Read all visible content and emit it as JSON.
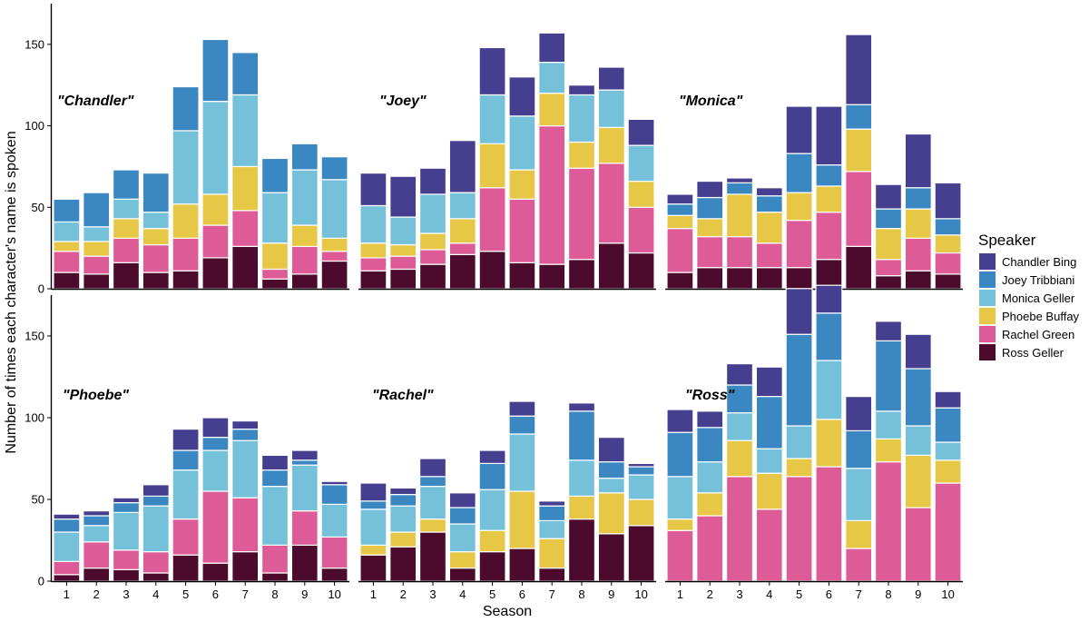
{
  "chart_data": {
    "type": "bar",
    "stacked": true,
    "xlabel": "Season",
    "ylabel": "Number of times each character's name is spoken",
    "ylim": [
      0,
      175
    ],
    "yticks": [
      0,
      50,
      100,
      150
    ],
    "categories": [
      "1",
      "2",
      "3",
      "4",
      "5",
      "6",
      "7",
      "8",
      "9",
      "10"
    ],
    "legend": {
      "title": "Speaker",
      "position": "right",
      "items": [
        {
          "name": "Chandler Bing",
          "color": "#463f8f"
        },
        {
          "name": "Joey Tribbiani",
          "color": "#3a87c2"
        },
        {
          "name": "Monica Geller",
          "color": "#76c1da"
        },
        {
          "name": "Phoebe Buffay",
          "color": "#e6c746"
        },
        {
          "name": "Rachel Green",
          "color": "#dd5c98"
        },
        {
          "name": "Ross Geller",
          "color": "#4c0b2d"
        }
      ]
    },
    "stack_order": [
      "Ross Geller",
      "Rachel Green",
      "Phoebe Buffay",
      "Monica Geller",
      "Joey Tribbiani",
      "Chandler Bing"
    ],
    "facets": [
      {
        "label": "\"Chandler\"",
        "series": [
          {
            "name": "Ross Geller",
            "values": [
              10,
              9,
              16,
              10,
              11,
              19,
              26,
              6,
              9,
              17
            ]
          },
          {
            "name": "Rachel Green",
            "values": [
              13,
              11,
              15,
              17,
              20,
              20,
              22,
              6,
              17,
              6
            ]
          },
          {
            "name": "Phoebe Buffay",
            "values": [
              6,
              9,
              12,
              10,
              21,
              19,
              27,
              16,
              13,
              8
            ]
          },
          {
            "name": "Monica Geller",
            "values": [
              12,
              9,
              12,
              10,
              45,
              57,
              44,
              31,
              34,
              36
            ]
          },
          {
            "name": "Joey Tribbiani",
            "values": [
              14,
              21,
              18,
              24,
              27,
              38,
              26,
              21,
              16,
              14
            ]
          },
          {
            "name": "Chandler Bing",
            "values": [
              0,
              0,
              0,
              0,
              0,
              0,
              0,
              0,
              0,
              0
            ]
          }
        ]
      },
      {
        "label": "\"Joey\"",
        "series": [
          {
            "name": "Ross Geller",
            "values": [
              11,
              12,
              15,
              21,
              23,
              16,
              15,
              18,
              28,
              22
            ]
          },
          {
            "name": "Rachel Green",
            "values": [
              8,
              8,
              9,
              7,
              39,
              39,
              85,
              56,
              49,
              28
            ]
          },
          {
            "name": "Phoebe Buffay",
            "values": [
              9,
              7,
              10,
              15,
              27,
              18,
              20,
              16,
              22,
              16
            ]
          },
          {
            "name": "Monica Geller",
            "values": [
              23,
              17,
              24,
              16,
              30,
              33,
              19,
              29,
              23,
              22
            ]
          },
          {
            "name": "Joey Tribbiani",
            "values": [
              0,
              0,
              0,
              0,
              0,
              0,
              0,
              0,
              0,
              0
            ]
          },
          {
            "name": "Chandler Bing",
            "values": [
              20,
              25,
              16,
              32,
              29,
              24,
              18,
              6,
              14,
              16
            ]
          }
        ]
      },
      {
        "label": "\"Monica\"",
        "series": [
          {
            "name": "Ross Geller",
            "values": [
              10,
              13,
              13,
              13,
              13,
              18,
              26,
              8,
              11,
              9
            ]
          },
          {
            "name": "Rachel Green",
            "values": [
              27,
              19,
              19,
              15,
              29,
              29,
              46,
              10,
              20,
              13
            ]
          },
          {
            "name": "Phoebe Buffay",
            "values": [
              8,
              11,
              26,
              19,
              17,
              16,
              26,
              19,
              18,
              11
            ]
          },
          {
            "name": "Monica Geller",
            "values": [
              0,
              0,
              0,
              0,
              0,
              0,
              0,
              0,
              0,
              0
            ]
          },
          {
            "name": "Joey Tribbiani",
            "values": [
              7,
              13,
              7,
              10,
              24,
              13,
              15,
              12,
              13,
              10
            ]
          },
          {
            "name": "Chandler Bing",
            "values": [
              6,
              10,
              3,
              5,
              29,
              36,
              43,
              15,
              33,
              22
            ]
          }
        ]
      },
      {
        "label": "\"Phoebe\"",
        "series": [
          {
            "name": "Ross Geller",
            "values": [
              4,
              8,
              7,
              5,
              16,
              11,
              18,
              5,
              22,
              8
            ]
          },
          {
            "name": "Rachel Green",
            "values": [
              8,
              16,
              12,
              13,
              22,
              44,
              33,
              17,
              21,
              19
            ]
          },
          {
            "name": "Phoebe Buffay",
            "values": [
              0,
              0,
              0,
              0,
              0,
              0,
              0,
              0,
              0,
              0
            ]
          },
          {
            "name": "Monica Geller",
            "values": [
              18,
              10,
              23,
              28,
              30,
              25,
              35,
              36,
              28,
              20
            ]
          },
          {
            "name": "Joey Tribbiani",
            "values": [
              8,
              6,
              6,
              6,
              12,
              8,
              7,
              10,
              3,
              12
            ]
          },
          {
            "name": "Chandler Bing",
            "values": [
              3,
              3,
              3,
              7,
              13,
              12,
              5,
              9,
              6,
              2
            ]
          }
        ]
      },
      {
        "label": "\"Rachel\"",
        "series": [
          {
            "name": "Ross Geller",
            "values": [
              16,
              21,
              30,
              8,
              18,
              20,
              8,
              38,
              29,
              34
            ]
          },
          {
            "name": "Rachel Green",
            "values": [
              0,
              0,
              0,
              0,
              0,
              0,
              0,
              0,
              0,
              0
            ]
          },
          {
            "name": "Phoebe Buffay",
            "values": [
              6,
              9,
              8,
              10,
              13,
              35,
              18,
              14,
              25,
              16
            ]
          },
          {
            "name": "Monica Geller",
            "values": [
              22,
              16,
              20,
              17,
              25,
              35,
              11,
              22,
              9,
              15
            ]
          },
          {
            "name": "Joey Tribbiani",
            "values": [
              5,
              7,
              6,
              10,
              16,
              11,
              9,
              30,
              10,
              5
            ]
          },
          {
            "name": "Chandler Bing",
            "values": [
              11,
              4,
              11,
              9,
              8,
              9,
              3,
              5,
              15,
              2
            ]
          }
        ]
      },
      {
        "label": "\"Ross\"",
        "series": [
          {
            "name": "Ross Geller",
            "values": [
              0,
              0,
              0,
              0,
              0,
              0,
              0,
              0,
              0,
              0
            ]
          },
          {
            "name": "Rachel Green",
            "values": [
              31,
              40,
              64,
              44,
              64,
              70,
              20,
              73,
              45,
              60
            ]
          },
          {
            "name": "Phoebe Buffay",
            "values": [
              7,
              14,
              22,
              22,
              11,
              29,
              17,
              14,
              32,
              14
            ]
          },
          {
            "name": "Monica Geller",
            "values": [
              26,
              19,
              17,
              15,
              20,
              36,
              32,
              17,
              18,
              11
            ]
          },
          {
            "name": "Joey Tribbiani",
            "values": [
              27,
              21,
              17,
              32,
              56,
              29,
              23,
              43,
              35,
              21
            ]
          },
          {
            "name": "Chandler Bing",
            "values": [
              14,
              10,
              13,
              18,
              28,
              17,
              21,
              12,
              21,
              10
            ]
          }
        ]
      }
    ]
  }
}
